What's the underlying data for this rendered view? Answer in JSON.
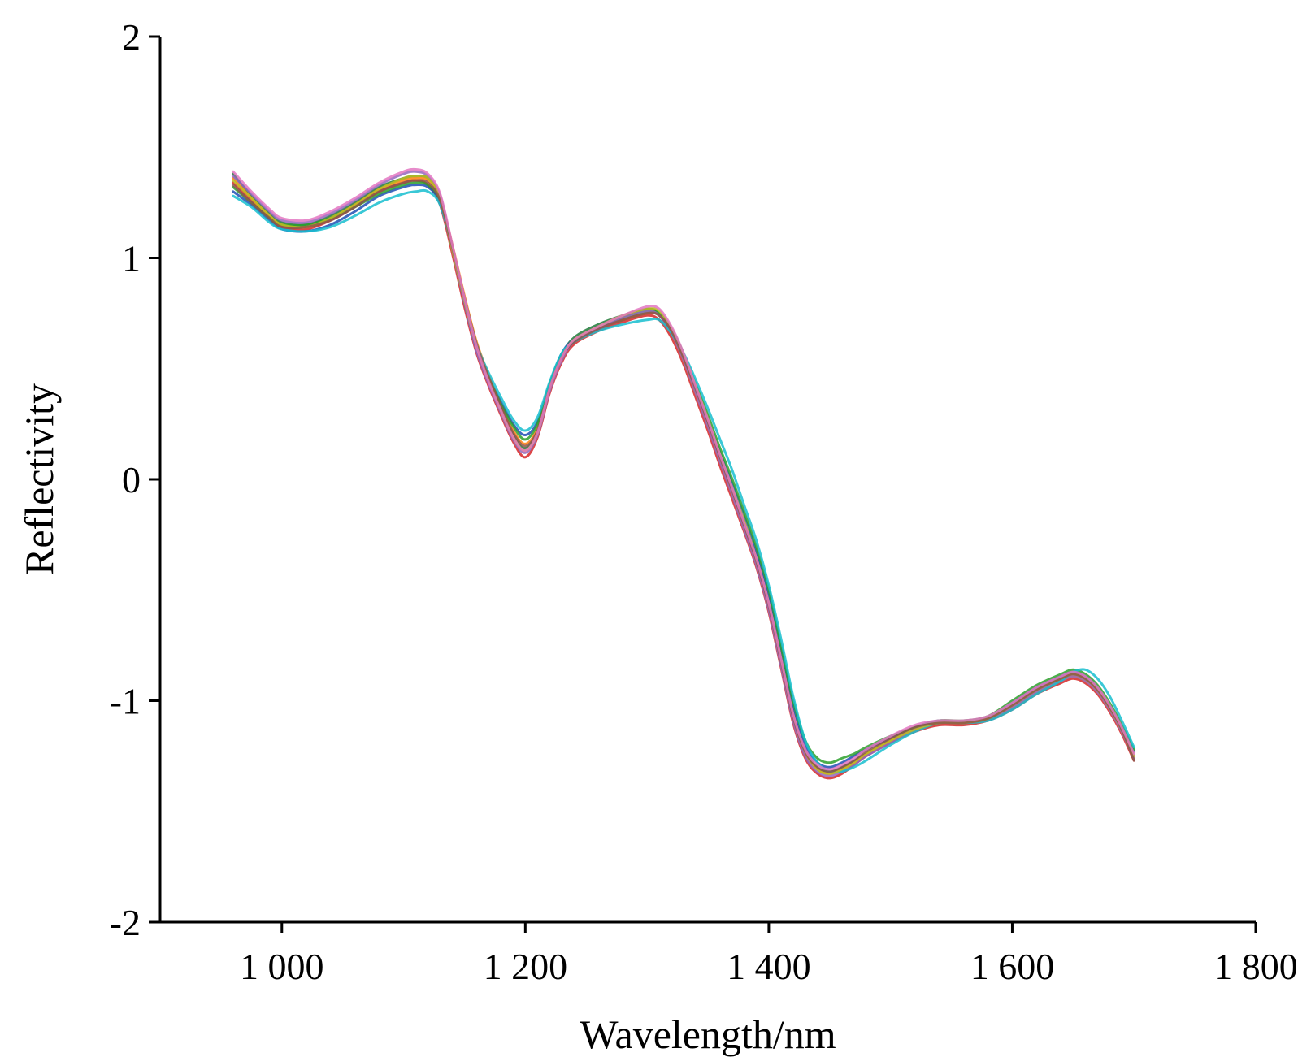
{
  "chart_data": {
    "type": "line",
    "title": "",
    "xlabel": "Wavelength/nm",
    "ylabel": "Reflectivity",
    "xlim": [
      900,
      1800
    ],
    "ylim": [
      -2,
      2
    ],
    "x_ticks": [
      {
        "value": 1000,
        "label": "1 000"
      },
      {
        "value": 1200,
        "label": "1 200"
      },
      {
        "value": 1400,
        "label": "1 400"
      },
      {
        "value": 1600,
        "label": "1 600"
      },
      {
        "value": 1800,
        "label": "1 800"
      }
    ],
    "y_ticks": [
      {
        "value": 2,
        "label": "2"
      },
      {
        "value": 1,
        "label": "1"
      },
      {
        "value": 0,
        "label": "0"
      },
      {
        "value": -1,
        "label": "-1"
      },
      {
        "value": -2,
        "label": "-2"
      }
    ],
    "grid": false,
    "legend": "none",
    "x": [
      960,
      975,
      990,
      1000,
      1020,
      1040,
      1060,
      1080,
      1100,
      1110,
      1120,
      1130,
      1140,
      1150,
      1160,
      1170,
      1180,
      1190,
      1200,
      1210,
      1220,
      1230,
      1240,
      1260,
      1280,
      1300,
      1310,
      1320,
      1330,
      1340,
      1350,
      1360,
      1370,
      1380,
      1390,
      1400,
      1410,
      1420,
      1430,
      1440,
      1450,
      1460,
      1470,
      1480,
      1500,
      1520,
      1540,
      1560,
      1580,
      1600,
      1620,
      1640,
      1650,
      1660,
      1670,
      1680,
      1690,
      1700
    ],
    "series": [
      {
        "values": [
          1.38,
          1.28,
          1.2,
          1.16,
          1.15,
          1.19,
          1.25,
          1.32,
          1.36,
          1.37,
          1.36,
          1.28,
          1.05,
          0.82,
          0.6,
          0.45,
          0.32,
          0.2,
          0.14,
          0.22,
          0.42,
          0.56,
          0.64,
          0.7,
          0.74,
          0.77,
          0.75,
          0.67,
          0.55,
          0.4,
          0.26,
          0.1,
          -0.05,
          -0.2,
          -0.35,
          -0.55,
          -0.8,
          -1.05,
          -1.22,
          -1.3,
          -1.32,
          -1.3,
          -1.27,
          -1.24,
          -1.18,
          -1.13,
          -1.1,
          -1.1,
          -1.08,
          -1.02,
          -0.95,
          -0.9,
          -0.88,
          -0.9,
          -0.95,
          -1.03,
          -1.13,
          -1.25
        ],
        "color": "#1f7a3a"
      },
      {
        "values": [
          1.34,
          1.26,
          1.18,
          1.14,
          1.13,
          1.17,
          1.23,
          1.3,
          1.34,
          1.35,
          1.33,
          1.24,
          1.02,
          0.78,
          0.57,
          0.42,
          0.29,
          0.17,
          0.1,
          0.19,
          0.39,
          0.53,
          0.61,
          0.67,
          0.71,
          0.74,
          0.72,
          0.64,
          0.52,
          0.37,
          0.22,
          0.06,
          -0.09,
          -0.24,
          -0.4,
          -0.6,
          -0.85,
          -1.1,
          -1.26,
          -1.33,
          -1.35,
          -1.33,
          -1.29,
          -1.25,
          -1.19,
          -1.14,
          -1.11,
          -1.11,
          -1.09,
          -1.04,
          -0.97,
          -0.92,
          -0.9,
          -0.92,
          -0.97,
          -1.05,
          -1.15,
          -1.27
        ],
        "color": "#d62728"
      },
      {
        "values": [
          1.3,
          1.24,
          1.17,
          1.13,
          1.12,
          1.15,
          1.21,
          1.28,
          1.32,
          1.33,
          1.32,
          1.25,
          1.04,
          0.8,
          0.59,
          0.46,
          0.35,
          0.25,
          0.2,
          0.26,
          0.43,
          0.57,
          0.63,
          0.68,
          0.72,
          0.75,
          0.74,
          0.66,
          0.55,
          0.41,
          0.27,
          0.12,
          -0.02,
          -0.17,
          -0.33,
          -0.52,
          -0.77,
          -1.02,
          -1.2,
          -1.28,
          -1.3,
          -1.28,
          -1.25,
          -1.22,
          -1.17,
          -1.12,
          -1.09,
          -1.1,
          -1.08,
          -1.01,
          -0.94,
          -0.89,
          -0.87,
          -0.89,
          -0.94,
          -1.02,
          -1.12,
          -1.23
        ],
        "color": "#1f4fb4"
      },
      {
        "values": [
          1.36,
          1.27,
          1.19,
          1.15,
          1.14,
          1.18,
          1.24,
          1.31,
          1.35,
          1.36,
          1.35,
          1.27,
          1.06,
          0.83,
          0.62,
          0.47,
          0.33,
          0.22,
          0.16,
          0.23,
          0.41,
          0.55,
          0.62,
          0.68,
          0.72,
          0.75,
          0.74,
          0.66,
          0.54,
          0.39,
          0.25,
          0.09,
          -0.06,
          -0.22,
          -0.38,
          -0.58,
          -0.83,
          -1.08,
          -1.24,
          -1.31,
          -1.33,
          -1.31,
          -1.28,
          -1.24,
          -1.18,
          -1.13,
          -1.1,
          -1.1,
          -1.08,
          -1.03,
          -0.96,
          -0.91,
          -0.89,
          -0.91,
          -0.96,
          -1.04,
          -1.14,
          -1.26
        ],
        "color": "#ff7f0e"
      },
      {
        "values": [
          1.32,
          1.25,
          1.18,
          1.15,
          1.15,
          1.18,
          1.23,
          1.29,
          1.33,
          1.34,
          1.33,
          1.26,
          1.05,
          0.81,
          0.6,
          0.46,
          0.34,
          0.24,
          0.18,
          0.25,
          0.43,
          0.56,
          0.63,
          0.69,
          0.73,
          0.76,
          0.75,
          0.68,
          0.57,
          0.43,
          0.29,
          0.14,
          0.0,
          -0.15,
          -0.31,
          -0.5,
          -0.75,
          -1.0,
          -1.18,
          -1.26,
          -1.28,
          -1.26,
          -1.24,
          -1.21,
          -1.16,
          -1.12,
          -1.09,
          -1.09,
          -1.07,
          -1.0,
          -0.93,
          -0.88,
          -0.86,
          -0.88,
          -0.93,
          -1.01,
          -1.11,
          -1.22
        ],
        "color": "#2ca02c"
      },
      {
        "values": [
          1.37,
          1.29,
          1.21,
          1.17,
          1.16,
          1.2,
          1.26,
          1.33,
          1.38,
          1.39,
          1.37,
          1.28,
          1.04,
          0.8,
          0.58,
          0.43,
          0.3,
          0.18,
          0.12,
          0.2,
          0.4,
          0.54,
          0.62,
          0.68,
          0.73,
          0.76,
          0.74,
          0.66,
          0.54,
          0.39,
          0.24,
          0.08,
          -0.07,
          -0.23,
          -0.39,
          -0.59,
          -0.84,
          -1.09,
          -1.25,
          -1.32,
          -1.34,
          -1.32,
          -1.29,
          -1.25,
          -1.19,
          -1.13,
          -1.1,
          -1.1,
          -1.08,
          -1.03,
          -0.96,
          -0.91,
          -0.89,
          -0.91,
          -0.96,
          -1.04,
          -1.14,
          -1.26
        ],
        "color": "#9467bd"
      },
      {
        "values": [
          1.28,
          1.23,
          1.16,
          1.13,
          1.12,
          1.14,
          1.19,
          1.25,
          1.29,
          1.3,
          1.3,
          1.24,
          1.05,
          0.82,
          0.61,
          0.48,
          0.37,
          0.27,
          0.22,
          0.28,
          0.44,
          0.57,
          0.62,
          0.67,
          0.7,
          0.72,
          0.72,
          0.66,
          0.57,
          0.45,
          0.32,
          0.18,
          0.04,
          -0.12,
          -0.28,
          -0.48,
          -0.72,
          -0.98,
          -1.18,
          -1.28,
          -1.32,
          -1.32,
          -1.3,
          -1.27,
          -1.2,
          -1.14,
          -1.1,
          -1.1,
          -1.09,
          -1.04,
          -0.97,
          -0.91,
          -0.87,
          -0.86,
          -0.9,
          -0.98,
          -1.09,
          -1.21
        ],
        "color": "#17becf"
      },
      {
        "values": [
          1.35,
          1.27,
          1.19,
          1.15,
          1.14,
          1.18,
          1.24,
          1.31,
          1.36,
          1.37,
          1.36,
          1.27,
          1.04,
          0.81,
          0.6,
          0.45,
          0.31,
          0.19,
          0.13,
          0.21,
          0.41,
          0.55,
          0.63,
          0.69,
          0.74,
          0.77,
          0.76,
          0.68,
          0.56,
          0.42,
          0.27,
          0.11,
          -0.04,
          -0.19,
          -0.36,
          -0.56,
          -0.81,
          -1.06,
          -1.23,
          -1.31,
          -1.33,
          -1.31,
          -1.28,
          -1.24,
          -1.18,
          -1.13,
          -1.1,
          -1.1,
          -1.08,
          -1.02,
          -0.95,
          -0.9,
          -0.88,
          -0.9,
          -0.95,
          -1.03,
          -1.13,
          -1.25
        ],
        "color": "#bcbd22"
      },
      {
        "values": [
          1.33,
          1.25,
          1.18,
          1.14,
          1.14,
          1.17,
          1.23,
          1.3,
          1.34,
          1.35,
          1.34,
          1.26,
          1.05,
          0.82,
          0.61,
          0.46,
          0.33,
          0.21,
          0.15,
          0.22,
          0.41,
          0.55,
          0.62,
          0.68,
          0.72,
          0.75,
          0.74,
          0.67,
          0.55,
          0.41,
          0.26,
          0.1,
          -0.05,
          -0.21,
          -0.37,
          -0.57,
          -0.82,
          -1.07,
          -1.23,
          -1.3,
          -1.32,
          -1.3,
          -1.27,
          -1.23,
          -1.17,
          -1.12,
          -1.1,
          -1.1,
          -1.08,
          -1.02,
          -0.95,
          -0.9,
          -0.88,
          -0.9,
          -0.95,
          -1.03,
          -1.13,
          -1.27
        ],
        "color": "#8c564b"
      },
      {
        "values": [
          1.39,
          1.3,
          1.22,
          1.18,
          1.17,
          1.21,
          1.27,
          1.34,
          1.39,
          1.4,
          1.38,
          1.29,
          1.06,
          0.82,
          0.6,
          0.44,
          0.31,
          0.19,
          0.13,
          0.21,
          0.41,
          0.55,
          0.63,
          0.69,
          0.74,
          0.78,
          0.77,
          0.69,
          0.57,
          0.42,
          0.27,
          0.11,
          -0.04,
          -0.2,
          -0.36,
          -0.56,
          -0.81,
          -1.06,
          -1.22,
          -1.29,
          -1.31,
          -1.29,
          -1.26,
          -1.22,
          -1.16,
          -1.11,
          -1.09,
          -1.09,
          -1.07,
          -1.01,
          -0.94,
          -0.89,
          -0.87,
          -0.89,
          -0.94,
          -1.02,
          -1.12,
          -1.24
        ],
        "color": "#e377c2"
      }
    ]
  }
}
